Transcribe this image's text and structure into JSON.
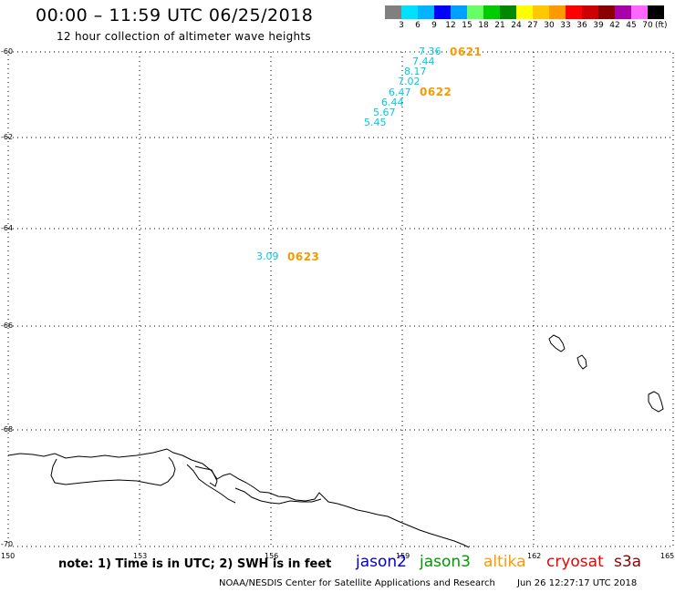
{
  "header": {
    "title": "00:00 – 11:59 UTC 06/25/2018",
    "subtitle": "12 hour collection of altimeter wave heights"
  },
  "colorbar": {
    "swatches": [
      {
        "color": "#808080",
        "label": ""
      },
      {
        "color": "#00e0ff",
        "label": "3"
      },
      {
        "color": "#00b4ff",
        "label": "6"
      },
      {
        "color": "#0000ff",
        "label": "9"
      },
      {
        "color": "#00a0ff",
        "label": "12"
      },
      {
        "color": "#66ff66",
        "label": "15"
      },
      {
        "color": "#00cc00",
        "label": "18"
      },
      {
        "color": "#008800",
        "label": "21"
      },
      {
        "color": "#ffff00",
        "label": "24"
      },
      {
        "color": "#ffc800",
        "label": "27"
      },
      {
        "color": "#ff9900",
        "label": "30"
      },
      {
        "color": "#ff0000",
        "label": "33"
      },
      {
        "color": "#cc0000",
        "label": "36"
      },
      {
        "color": "#880000",
        "label": "39"
      },
      {
        "color": "#aa00aa",
        "label": "42"
      },
      {
        "color": "#ff66ff",
        "label": "45"
      },
      {
        "color": "#000000",
        "label": "70"
      }
    ],
    "unit": "(ft)"
  },
  "map": {
    "lat_labels": [
      "-60",
      "-62",
      "-64",
      "-66",
      "-68",
      "-70"
    ],
    "lon_labels": [
      "150",
      "153",
      "156",
      "159",
      "162",
      "165"
    ]
  },
  "observations": {
    "wave_heights": [
      "7.36",
      "7.44",
      "8.17",
      "7.02",
      "6.47",
      "6.44",
      "5.67",
      "5.45",
      "3.09"
    ],
    "times": [
      "0621",
      "0622",
      "0623"
    ]
  },
  "footer": {
    "note": "note: 1) Time is in UTC; 2) SWH is in feet",
    "satellites": [
      {
        "name": "jason2",
        "color": "#0000cc"
      },
      {
        "name": "jason3",
        "color": "#009900"
      },
      {
        "name": "altika",
        "color": "#ff9900"
      },
      {
        "name": "cryosat",
        "color": "#ee0000"
      },
      {
        "name": "s3a",
        "color": "#880000"
      }
    ],
    "credit": "NOAA/NESDIS Center for Satellite Applications and Research",
    "timestamp": "Jun 26 12:27:17 UTC 2018"
  }
}
